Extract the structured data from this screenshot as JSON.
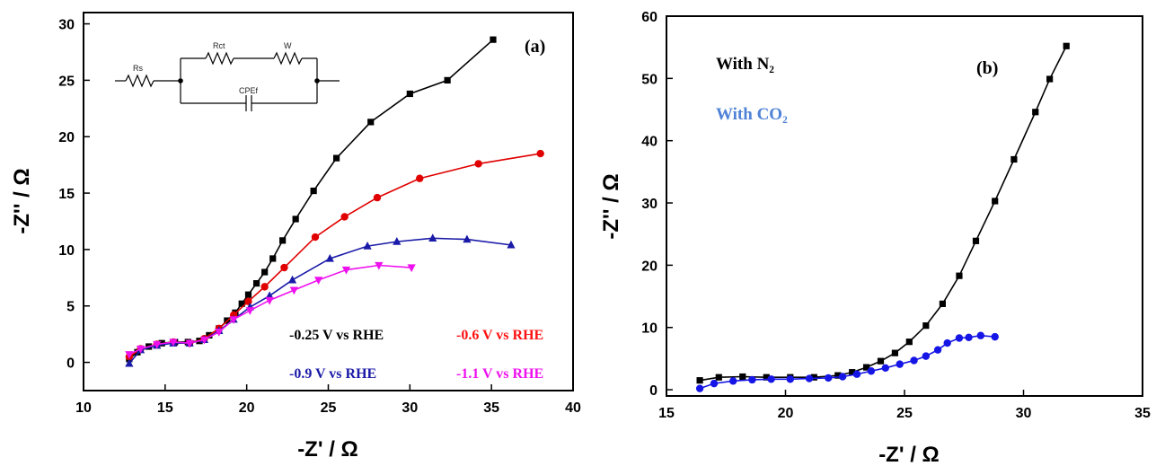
{
  "chart_data": [
    {
      "type": "line",
      "panel_label": "(a)",
      "xlabel": "-Z' / Ω",
      "ylabel": "-Z'' / Ω",
      "xlim": [
        10,
        40
      ],
      "ylim": [
        -2.5,
        31
      ],
      "xticks": [
        10,
        15,
        20,
        25,
        30,
        35,
        40
      ],
      "yticks": [
        0,
        5,
        10,
        15,
        20,
        25,
        30
      ],
      "circuit_labels": {
        "rs": "Rs",
        "rct": "Rct",
        "w": "W",
        "cpe": "CPEf"
      },
      "series": [
        {
          "name": "-0.25 V vs RHE",
          "color": "#000000",
          "marker": "square",
          "label_color": "#000000",
          "x": [
            12.8,
            13.3,
            14,
            14.8,
            15.6,
            16.4,
            17.1,
            17.7,
            18.3,
            18.8,
            19.3,
            19.7,
            20.1,
            20.6,
            21.1,
            21.6,
            22.2,
            23.0,
            24.1,
            25.5,
            27.6,
            30.0,
            32.3,
            35.1
          ],
          "y": [
            0.3,
            0.9,
            1.4,
            1.7,
            1.8,
            1.8,
            1.9,
            2.4,
            3.0,
            3.7,
            4.4,
            5.2,
            6.0,
            7.0,
            8.0,
            9.2,
            10.8,
            12.7,
            15.2,
            18.1,
            21.3,
            23.8,
            25.0,
            28.6
          ]
        },
        {
          "name": "-0.6 V vs RHE",
          "color": "#e00000",
          "marker": "circle",
          "label_color": "#ff1111",
          "x": [
            12.8,
            13.5,
            14.5,
            15.5,
            16.5,
            17.4,
            18.3,
            19.2,
            20.1,
            21.1,
            22.3,
            24.2,
            26.0,
            28.0,
            30.6,
            34.2,
            38.0
          ],
          "y": [
            0.5,
            1.2,
            1.6,
            1.8,
            1.7,
            2.1,
            3.0,
            4.2,
            5.4,
            6.7,
            8.4,
            11.1,
            12.9,
            14.6,
            16.3,
            17.6,
            18.5
          ]
        },
        {
          "name": "-0.9 V vs RHE",
          "color": "#1a1aa8",
          "marker": "triangle",
          "label_color": "#1a1aa8",
          "x": [
            12.8,
            13.5,
            14.5,
            15.5,
            16.5,
            17.4,
            18.3,
            19.2,
            20.2,
            21.4,
            22.8,
            25.1,
            27.4,
            29.2,
            31.4,
            33.5,
            36.2
          ],
          "y": [
            -0.1,
            1.1,
            1.5,
            1.7,
            1.7,
            2.0,
            2.8,
            3.8,
            4.9,
            5.9,
            7.3,
            9.2,
            10.3,
            10.7,
            11.0,
            10.9,
            10.4
          ]
        },
        {
          "name": "-1.1 V vs RHE",
          "color": "#ee11ee",
          "marker": "triangle-down",
          "label_color": "#ee11ee",
          "x": [
            12.8,
            13.5,
            14.5,
            15.5,
            16.5,
            17.4,
            18.3,
            19.2,
            20.2,
            21.4,
            22.9,
            24.4,
            26.1,
            28.1,
            30.1
          ],
          "y": [
            0.7,
            1.2,
            1.6,
            1.8,
            1.7,
            2.0,
            2.7,
            3.8,
            4.6,
            5.5,
            6.4,
            7.3,
            8.2,
            8.6,
            8.4
          ]
        }
      ]
    },
    {
      "type": "line",
      "panel_label": "(b)",
      "xlabel": "-Z' / Ω",
      "ylabel": "-Z'' / Ω",
      "xlim": [
        15,
        35
      ],
      "ylim": [
        -1,
        60
      ],
      "xticks": [
        15,
        20,
        25,
        30,
        35
      ],
      "yticks": [
        0,
        10,
        20,
        30,
        40,
        50,
        60
      ],
      "series": [
        {
          "name": "With N₂",
          "color": "#000000",
          "marker": "square",
          "label_color": "#000000",
          "x": [
            16.4,
            17.2,
            18.2,
            19.2,
            20.2,
            21.2,
            22.2,
            22.8,
            23.4,
            24.0,
            24.6,
            25.2,
            25.9,
            26.6,
            27.3,
            28.0,
            28.8,
            29.6,
            30.5,
            31.1,
            31.8
          ],
          "y": [
            1.5,
            2.0,
            2.1,
            2.0,
            2.0,
            2.0,
            2.3,
            2.8,
            3.6,
            4.6,
            5.9,
            7.7,
            10.3,
            13.8,
            18.3,
            23.9,
            30.3,
            37.0,
            44.6,
            49.9,
            55.2
          ]
        },
        {
          "name": "With CO₂",
          "color": "#1515e6",
          "marker": "circle",
          "label_color": "#4f82d6",
          "x": [
            16.4,
            17.0,
            17.8,
            18.6,
            19.4,
            20.2,
            21.0,
            21.8,
            22.4,
            23.0,
            23.6,
            24.2,
            24.8,
            25.4,
            25.9,
            26.4,
            26.8,
            27.3,
            27.7,
            28.2,
            28.8
          ],
          "y": [
            0.2,
            1.0,
            1.4,
            1.6,
            1.7,
            1.7,
            1.8,
            1.9,
            2.1,
            2.5,
            3.0,
            3.5,
            4.1,
            4.7,
            5.4,
            6.4,
            7.5,
            8.3,
            8.4,
            8.7,
            8.5
          ]
        }
      ]
    }
  ]
}
